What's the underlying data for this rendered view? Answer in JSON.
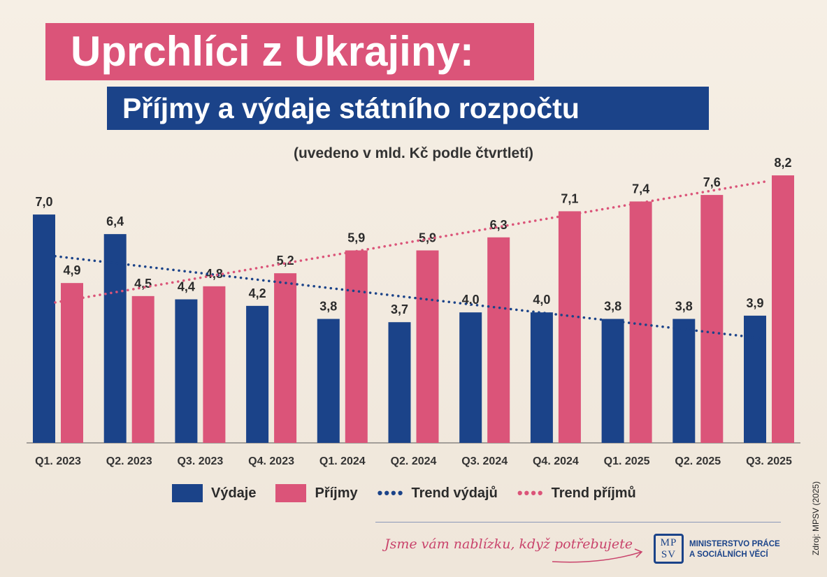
{
  "title": "Uprchlíci z Ukrajiny:",
  "subtitle": "Příjmy a výdaje státního rozpočtu",
  "note": "(uvedeno v mld. Kč podle čtvrtletí)",
  "chart_data": {
    "type": "bar",
    "categories": [
      "Q1. 2023",
      "Q2. 2023",
      "Q3. 2023",
      "Q4. 2023",
      "Q1. 2024",
      "Q2. 2024",
      "Q3. 2024",
      "Q4. 2024",
      "Q1. 2025",
      "Q2. 2025",
      "Q3. 2025"
    ],
    "series": [
      {
        "name": "Výdaje",
        "color": "#1b4389",
        "values": [
          7.0,
          6.4,
          4.4,
          4.2,
          3.8,
          3.7,
          4.0,
          4.0,
          3.8,
          3.8,
          3.9
        ],
        "labels": [
          "7,0",
          "6,4",
          "4,4",
          "4,2",
          "3,8",
          "3,7",
          "4,0",
          "4,0",
          "3,8",
          "3,8",
          "3,9"
        ]
      },
      {
        "name": "Příjmy",
        "color": "#db5479",
        "values": [
          4.9,
          4.5,
          4.8,
          5.2,
          5.9,
          5.9,
          6.3,
          7.1,
          7.4,
          7.6,
          8.2
        ],
        "labels": [
          "4,9",
          "4,5",
          "4,8",
          "5,2",
          "5,9",
          "5,9",
          "6,3",
          "7,1",
          "7,4",
          "7,6",
          "8,2"
        ]
      }
    ],
    "trendlines": [
      {
        "name": "Trend výdajů",
        "color": "#1b4389",
        "style": "dotted",
        "type": "linear"
      },
      {
        "name": "Trend příjmů",
        "color": "#db5479",
        "style": "dotted",
        "type": "linear"
      }
    ],
    "ylim": [
      0,
      8.5
    ],
    "grid": false,
    "legend": "bottom"
  },
  "footer": {
    "slogan": "Jsme vám nablízku, když potřebujete",
    "logo_text": "MPSV",
    "ministry_line1": "MINISTERSTVO PRÁCE",
    "ministry_line2": "A SOCIÁLNÍCH VĚCÍ",
    "source": "Zdroj: MPSV (2025)"
  }
}
